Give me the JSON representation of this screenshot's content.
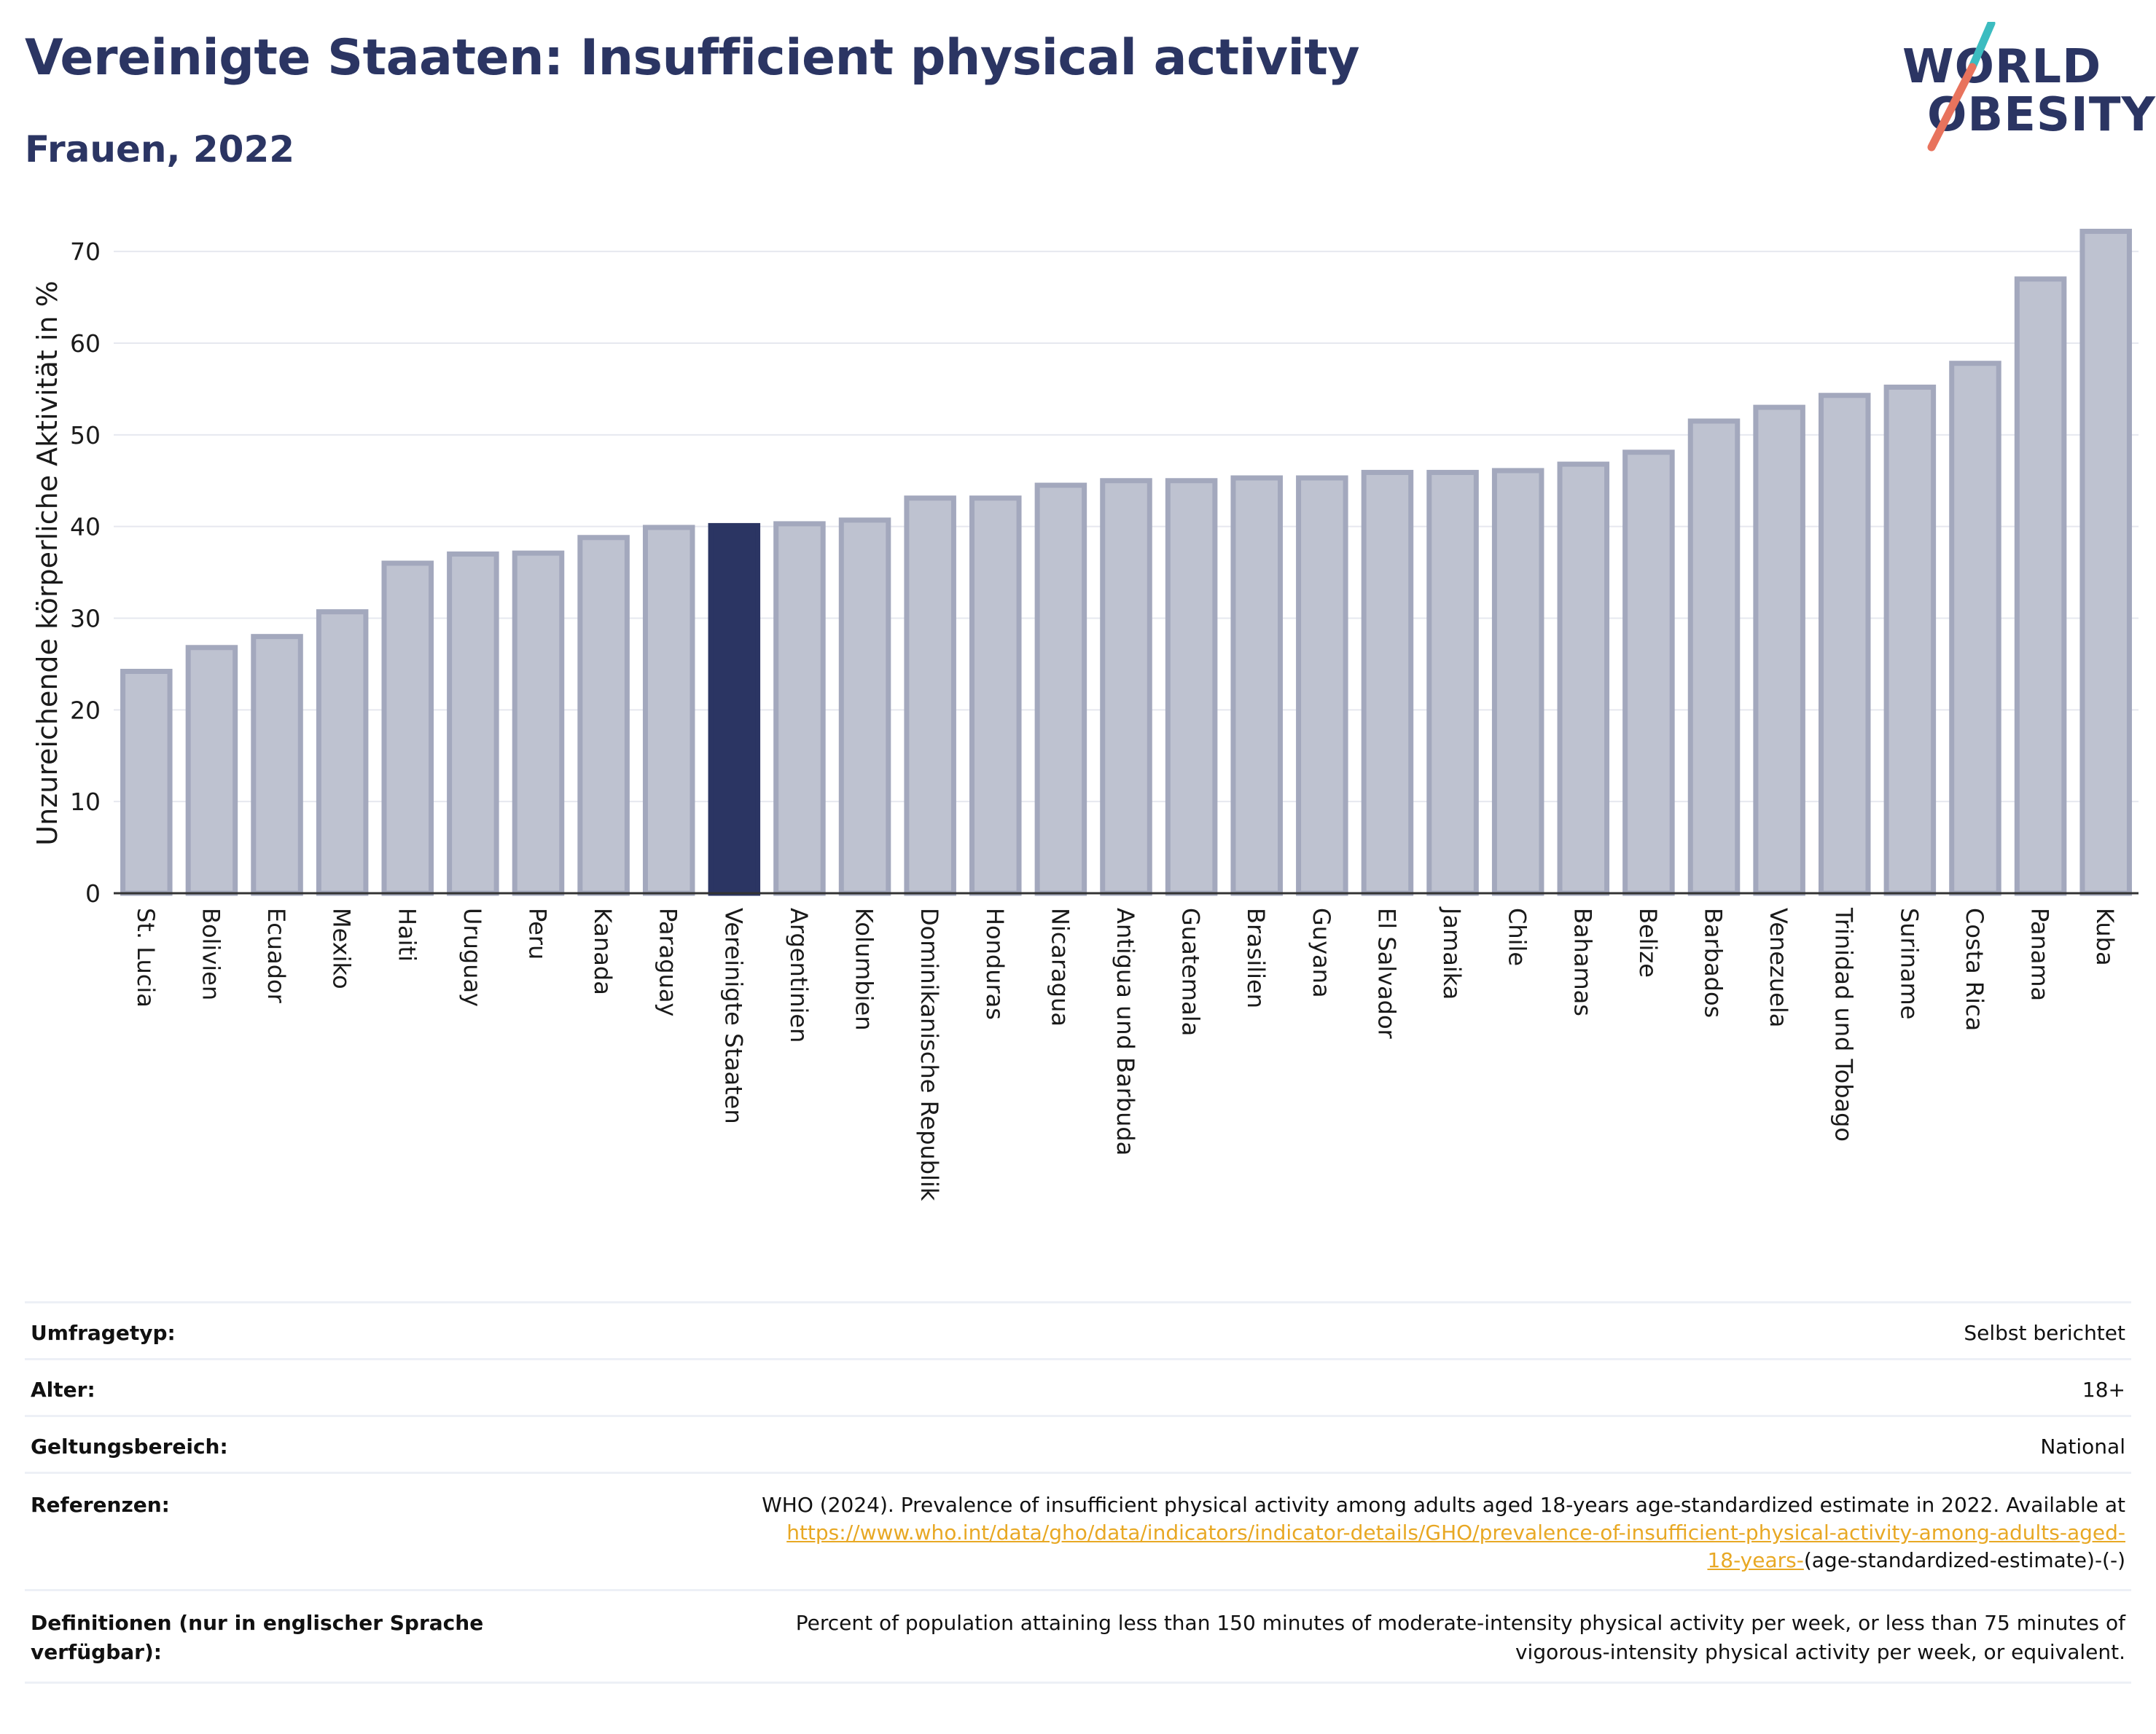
{
  "header": {
    "title": "Vereinigte Staaten: Insufficient physical activity",
    "subtitle": "Frauen, 2022"
  },
  "logo": {
    "line1": "WORLD",
    "line2": "OBESITY"
  },
  "colors": {
    "accent": "#2b3563",
    "bar_fill": "#bec2d0",
    "bar_stroke": "#a3a8bd",
    "highlight": "#2b3563",
    "link": "#e8a824",
    "logo_teal": "#3cbcc0",
    "logo_coral": "#e8735d"
  },
  "chart_data": {
    "type": "bar",
    "title": "Vereinigte Staaten: Insufficient physical activity",
    "subtitle": "Frauen, 2022",
    "ylabel": "Unzureichende körperliche Aktivität in %",
    "xlabel": "",
    "ylim": [
      0,
      72
    ],
    "yticks": [
      0,
      10,
      20,
      30,
      40,
      50,
      60,
      70
    ],
    "grid": true,
    "highlight": "Vereinigte Staaten",
    "categories": [
      "St. Lucia",
      "Bolivien",
      "Ecuador",
      "Mexiko",
      "Haiti",
      "Uruguay",
      "Peru",
      "Kanada",
      "Paraguay",
      "Vereinigte Staaten",
      "Argentinien",
      "Kolumbien",
      "Dominikanische Republik",
      "Honduras",
      "Nicaragua",
      "Antigua und Barbuda",
      "Guatemala",
      "Brasilien",
      "Guyana",
      "El Salvador",
      "Jamaika",
      "Chile",
      "Bahamas",
      "Belize",
      "Barbados",
      "Venezuela",
      "Trinidad und Tobago",
      "Suriname",
      "Costa Rica",
      "Panama",
      "Kuba"
    ],
    "values": [
      24.2,
      26.8,
      28.0,
      30.7,
      36.0,
      37.0,
      37.1,
      38.8,
      39.9,
      40.1,
      40.3,
      40.7,
      43.1,
      43.1,
      44.5,
      45.0,
      45.0,
      45.3,
      45.3,
      45.9,
      45.9,
      46.1,
      46.8,
      48.1,
      51.5,
      53.0,
      54.3,
      55.2,
      57.8,
      67.0,
      72.2
    ]
  },
  "meta": {
    "survey_label": "Umfragetyp:",
    "survey_value": "Selbst berichtet",
    "age_label": "Alter:",
    "age_value": "18+",
    "scope_label": "Geltungsbereich:",
    "scope_value": "National",
    "ref_label": "Referenzen:",
    "ref_text": "WHO (2024). Prevalence of insufficient physical activity among adults aged 18-years age-standardized estimate in 2022. Available at",
    "ref_link_1": "https://www.who.int/data/gho/data/indicators/indicator-details/GHO/prevalence-of-insufficient-physical-activity-among-adults-aged-",
    "ref_link_2": "18-years-",
    "ref_tail": "(age-standardized-estimate)-(-)",
    "def_label_1": "Definitionen (nur in englischer Sprache",
    "def_label_2": "verfügbar):",
    "def_text_1": "Percent of population attaining less than 150 minutes of moderate-intensity physical activity per week, or less than 75 minutes of",
    "def_text_2": "vigorous-intensity physical activity per week, or equivalent."
  }
}
